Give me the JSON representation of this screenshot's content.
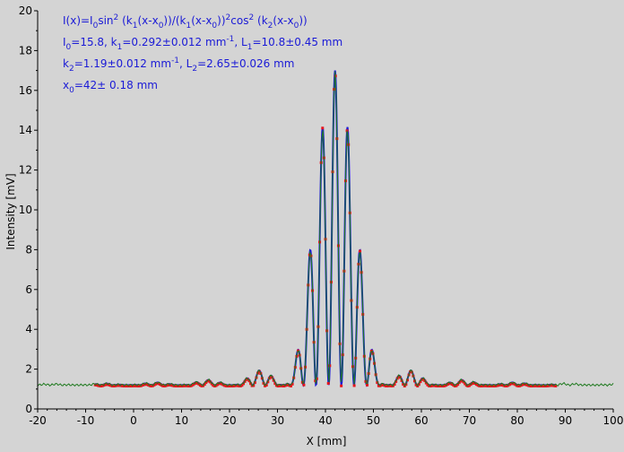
{
  "chart_data": {
    "type": "scatter",
    "xlabel": "X [mm]",
    "ylabel": "Intensity [mV]",
    "xlim": [
      -20,
      100
    ],
    "ylim": [
      0,
      20
    ],
    "xticks": [
      -20,
      -10,
      0,
      10,
      20,
      30,
      40,
      50,
      60,
      70,
      80,
      90,
      100
    ],
    "yticks": [
      0,
      2,
      4,
      6,
      8,
      10,
      12,
      14,
      16,
      18,
      20
    ],
    "grid": false,
    "colors": {
      "background": "#d4d4d4",
      "fit": "#1a1ad6",
      "data_red": "#e8141c",
      "data_green": "#1f7a1f",
      "annotation": "#1a1ad6"
    },
    "annotations": [
      {
        "segments": [
          {
            "t": "I(x)=I"
          },
          {
            "t": "0",
            "sub": true
          },
          {
            "t": "sin"
          },
          {
            "t": "2",
            "sup": true
          },
          {
            "t": " (k"
          },
          {
            "t": "1",
            "sub": true
          },
          {
            "t": "(x-x"
          },
          {
            "t": "0",
            "sub": true
          },
          {
            "t": "))/(k"
          },
          {
            "t": "1",
            "sub": true
          },
          {
            "t": "(x-x"
          },
          {
            "t": "0",
            "sub": true
          },
          {
            "t": "))"
          },
          {
            "t": "2",
            "sup": true
          },
          {
            "t": "cos"
          },
          {
            "t": "2",
            "sup": true
          },
          {
            "t": " (k"
          },
          {
            "t": "2",
            "sub": true
          },
          {
            "t": "(x-x"
          },
          {
            "t": "0",
            "sub": true
          },
          {
            "t": "))"
          }
        ]
      },
      {
        "segments": [
          {
            "t": "I"
          },
          {
            "t": "0",
            "sub": true
          },
          {
            "t": "=15.8,  k"
          },
          {
            "t": "1",
            "sub": true
          },
          {
            "t": "=0.292±0.012 mm"
          },
          {
            "t": "-1",
            "sup": true
          },
          {
            "t": ",   L"
          },
          {
            "t": "1",
            "sub": true
          },
          {
            "t": "=10.8±0.45 mm"
          }
        ]
      },
      {
        "segments": [
          {
            "t": "k"
          },
          {
            "t": "2",
            "sub": true
          },
          {
            "t": "=1.19±0.012 mm"
          },
          {
            "t": "-1",
            "sup": true
          },
          {
            "t": ",   L"
          },
          {
            "t": "2",
            "sub": true
          },
          {
            "t": "=2.65±0.026 mm"
          }
        ]
      },
      {
        "segments": [
          {
            "t": "x"
          },
          {
            "t": "0",
            "sub": true
          },
          {
            "t": "=42±  0.18 mm"
          }
        ]
      }
    ],
    "series": [
      {
        "kind": "fit-curve",
        "color": "#1a1ad6",
        "x_range": [
          -8,
          88
        ],
        "model": {
          "I0": 15.8,
          "k1": 0.292,
          "k2": 1.19,
          "x0": 42,
          "baseline": 1.2
        }
      },
      {
        "kind": "measured-red",
        "color": "#e8141c",
        "x_range": [
          -8,
          88
        ],
        "step": 0.3,
        "model": {
          "I0": 15.8,
          "k1": 0.292,
          "k2": 1.19,
          "x0": 42,
          "baseline": 1.15
        }
      },
      {
        "kind": "measured-green",
        "color": "#1f7a1f",
        "x_range": [
          -20,
          100
        ],
        "step": 0.25,
        "model": {
          "I0": 15.8,
          "k1": 0.292,
          "k2": 1.19,
          "x0": 42,
          "baseline": 1.2
        }
      }
    ]
  }
}
